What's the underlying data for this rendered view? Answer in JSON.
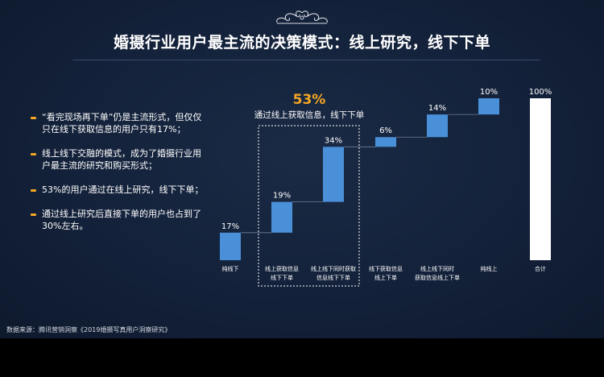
{
  "title": "婚摄行业用户最主流的决策模式：线上研究，线下下单",
  "bullets": [
    "“看完现场再下单”仍是主流形式，但仅仅只在线下获取信息的用户只有17%；",
    "线上线下交融的模式，成为了婚摄行业用户最主流的研究和购买形式；",
    "53%的用户通过在线上研究，线下下单；",
    "通过线上研究后直接下单的用户也占到了30%左右。"
  ],
  "highlight": {
    "value": "53%",
    "label": "通过线上获取信息，线下下单"
  },
  "source": "数据来源：腾讯营销洞察《2019婚摄写真用户洞察研究》",
  "colors": {
    "bar": "#4a90d9",
    "total": "#ffffff",
    "accent": "#f5a623",
    "connector": "#6f7d95"
  },
  "chart_data": {
    "type": "bar",
    "subtype": "waterfall",
    "categories": [
      "纯线下",
      "线上获取信息\n线下下单",
      "线上线下同时获取\n信息线下下单",
      "线下获取信息\n线上下单",
      "线上线下同时\n获取信息线上下单",
      "纯线上",
      "合计"
    ],
    "values": [
      17,
      19,
      34,
      6,
      14,
      10,
      100
    ],
    "labels": [
      "17%",
      "19%",
      "34%",
      "6%",
      "14%",
      "10%",
      "100%"
    ],
    "total_index": 6,
    "ylim": [
      0,
      100
    ],
    "title": "",
    "xlabel": "",
    "ylabel": ""
  }
}
